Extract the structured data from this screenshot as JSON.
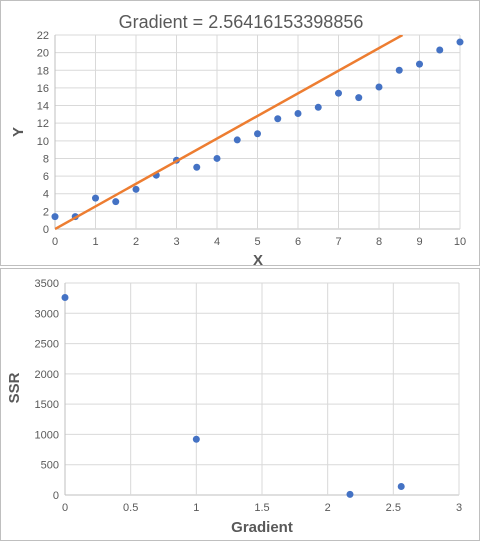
{
  "chart_data": [
    {
      "type": "scatter",
      "title": "Gradient = 2.56416153398856",
      "xlabel": "X",
      "ylabel": "Y",
      "xlim": [
        0,
        10
      ],
      "ylim": [
        0,
        22
      ],
      "xticks": [
        0,
        1,
        2,
        3,
        4,
        5,
        6,
        7,
        8,
        9,
        10
      ],
      "yticks": [
        0,
        2,
        4,
        6,
        8,
        10,
        12,
        14,
        16,
        18,
        20,
        22
      ],
      "grid": "horizontal and vertical",
      "series": [
        {
          "type": "scatter",
          "color": "#4472c4",
          "x": [
            0,
            0.5,
            1,
            1.5,
            2,
            2.5,
            3,
            3.5,
            4,
            4.5,
            5,
            5.5,
            6,
            6.5,
            7,
            7.5,
            8,
            8.5,
            9,
            9.5,
            10
          ],
          "y": [
            1.4,
            1.4,
            3.5,
            3.1,
            4.5,
            6.1,
            7.8,
            7.0,
            8.0,
            10.1,
            10.8,
            12.5,
            13.1,
            13.8,
            15.4,
            14.9,
            16.1,
            18.0,
            18.7,
            20.3,
            21.2
          ]
        },
        {
          "type": "line",
          "color": "#ed7d31",
          "x": [
            0,
            8.58
          ],
          "y": [
            0,
            22
          ]
        }
      ]
    },
    {
      "type": "scatter",
      "title": "",
      "xlabel": "Gradient",
      "ylabel": "SSR",
      "xlim": [
        0,
        3
      ],
      "ylim": [
        0,
        3500
      ],
      "xticks": [
        "0",
        "0.5",
        "1",
        "1.5",
        "2",
        "2.5",
        "3"
      ],
      "yticks": [
        0,
        500,
        1000,
        1500,
        2000,
        2500,
        3000,
        3500
      ],
      "grid": "horizontal and vertical",
      "series": [
        {
          "type": "scatter",
          "color": "#4472c4",
          "x": [
            0,
            1,
            2.17,
            2.56
          ],
          "y": [
            3260,
            920,
            10,
            140
          ]
        }
      ]
    }
  ]
}
